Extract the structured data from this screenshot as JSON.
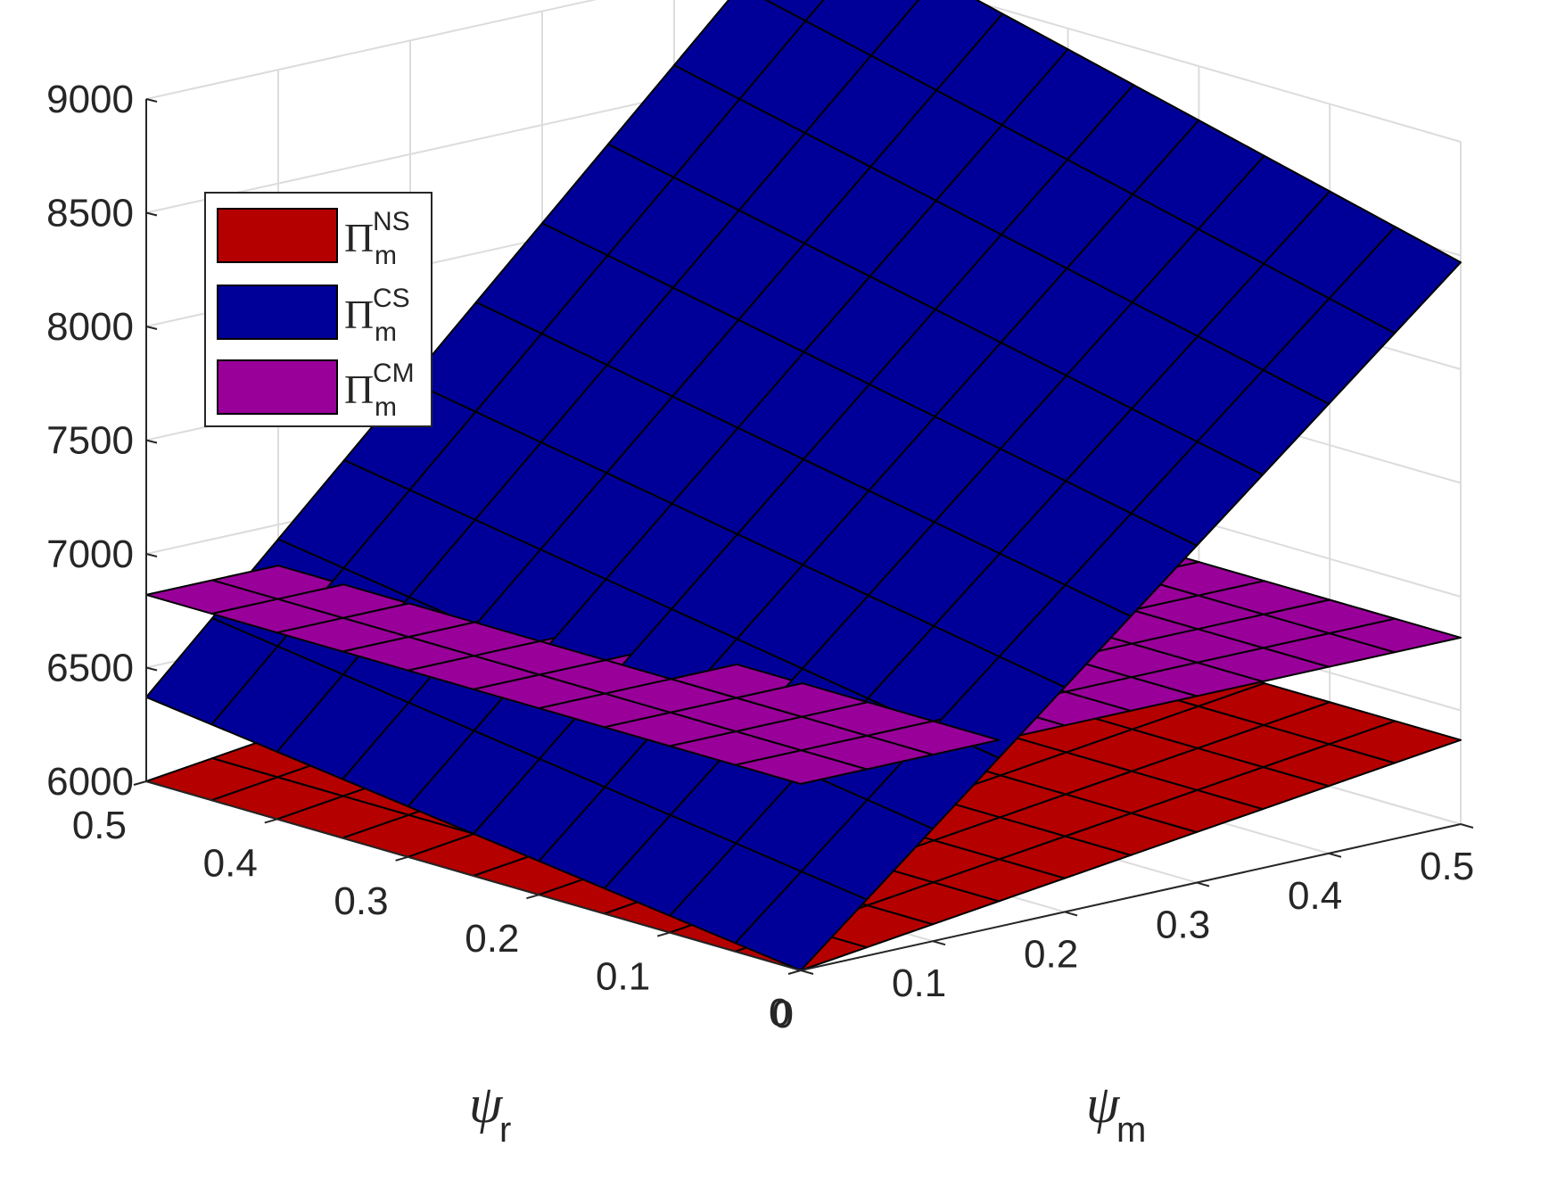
{
  "chart_data": {
    "type": "surface3d",
    "title": "",
    "xlabel": {
      "symbol": "ψ",
      "subscript": "m"
    },
    "ylabel": {
      "symbol": "ψ",
      "subscript": "r"
    },
    "zlabel": "",
    "x_ticks": [
      "0",
      "0.1",
      "0.2",
      "0.3",
      "0.4",
      "0.5"
    ],
    "y_ticks": [
      "0",
      "0.1",
      "0.2",
      "0.3",
      "0.4",
      "0.5"
    ],
    "z_ticks": [
      "6000",
      "6500",
      "7000",
      "7500",
      "8000",
      "8500",
      "9000"
    ],
    "xlim": [
      0,
      0.5
    ],
    "ylim": [
      0,
      0.5
    ],
    "zlim": [
      6000,
      9000
    ],
    "grid": true,
    "legend_position": "top-left",
    "grid_lines_per_axis": 11,
    "series": [
      {
        "name": {
          "symbol": "Π",
          "sup": "NS",
          "sub": "m"
        },
        "color": "#B50000",
        "corner_values": {
          "x0y0": 6000,
          "x0y05": 6000,
          "x05y0": 6370,
          "x05y05": 6370
        }
      },
      {
        "name": {
          "symbol": "Π",
          "sup": "CS",
          "sub": "m"
        },
        "color": "#000099",
        "corner_values": {
          "x0y0": 6000,
          "x0y05": 6370,
          "x05y0": 8470,
          "x05y05": 9200
        }
      },
      {
        "name": {
          "symbol": "Π",
          "sup": "CM",
          "sub": "m"
        },
        "color": "#990099",
        "corner_values": {
          "x0y0": 6820,
          "x0y05": 6820,
          "x05y0": 6820,
          "x05y05": 6820
        }
      }
    ]
  }
}
